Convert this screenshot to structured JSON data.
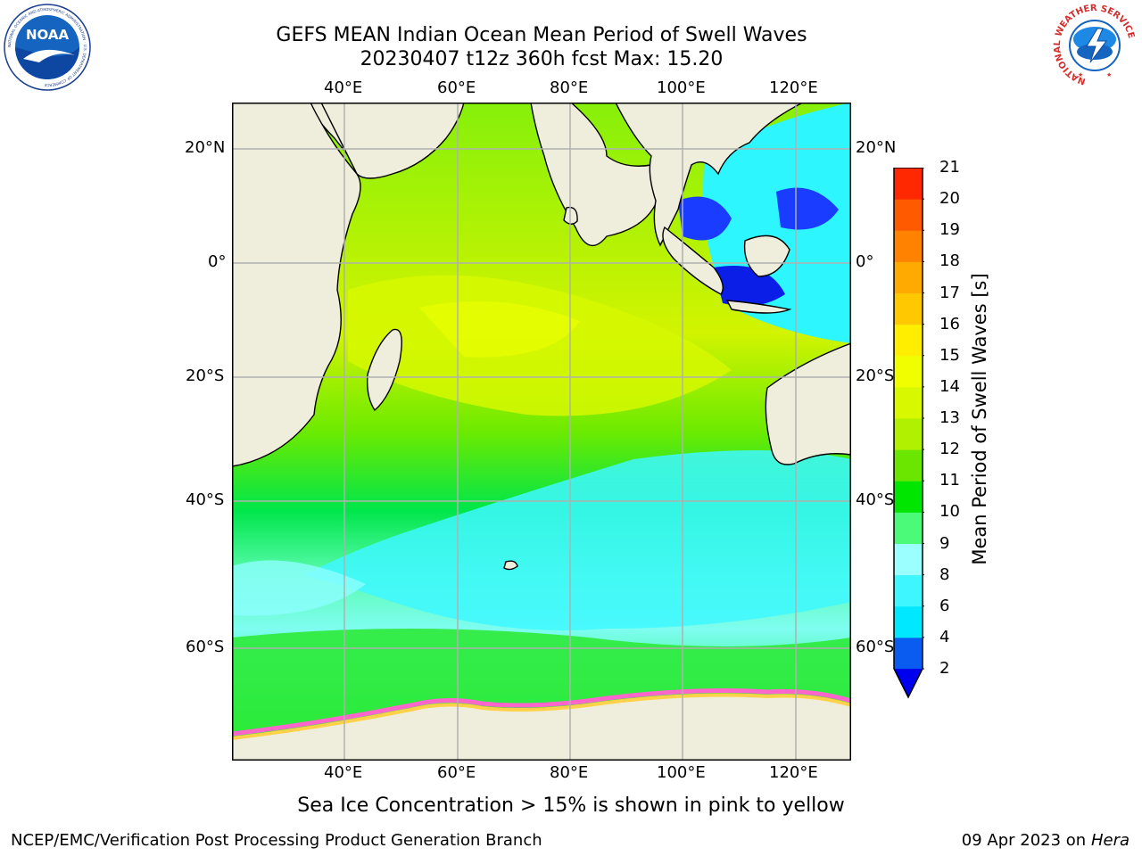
{
  "title": {
    "line1": "GEFS MEAN Indian Ocean Mean Period of Swell Waves",
    "line2": "20230407 t12z 360h fcst   Max: 15.20"
  },
  "logos": {
    "left_text": "NOAA",
    "left_ring": "NATIONAL OCEANIC AND ATMOSPHERIC ADMINISTRATION · U.S. DEPARTMENT OF COMMERCE",
    "right_text": "NATIONAL WEATHER SERVICE"
  },
  "map": {
    "lon_ticks": [
      "40°E",
      "60°E",
      "80°E",
      "100°E",
      "120°E"
    ],
    "lat_ticks_left": [
      "20°N",
      "0°",
      "20°S",
      "40°S",
      "60°S"
    ],
    "lat_ticks_right": [
      "20°N",
      "0°",
      "20°S",
      "40°S",
      "60°S"
    ],
    "colors": {
      "land": "#efeedd",
      "grid": "#b0b0b0",
      "sea_ice_pink": "#ff66cc",
      "sea_ice_yellow": "#ffd24a"
    }
  },
  "colorbar": {
    "title": "Mean Period of Swell Waves [s]",
    "ticks": [
      "2",
      "4",
      "6",
      "8",
      "9",
      "10",
      "11",
      "12",
      "13",
      "14",
      "15",
      "16",
      "17",
      "18",
      "19",
      "20",
      "21"
    ],
    "colors": [
      "#0a5cf0",
      "#00e8ff",
      "#3ef6ff",
      "#9cffff",
      "#4cfa7a",
      "#00e600",
      "#6ae600",
      "#b0f000",
      "#d8f800",
      "#f0ff00",
      "#ffee00",
      "#ffc800",
      "#ffaa00",
      "#ff8200",
      "#ff5a00",
      "#ff2800"
    ],
    "under_color": "#0000ee"
  },
  "subtitle": "Sea Ice Concentration > 15% is shown in pink to yellow",
  "footer": {
    "left": "NCEP/EMC/Verification Post Processing Product Generation Branch",
    "right_prefix": "09 Apr 2023 on ",
    "right_host": "Hera"
  }
}
